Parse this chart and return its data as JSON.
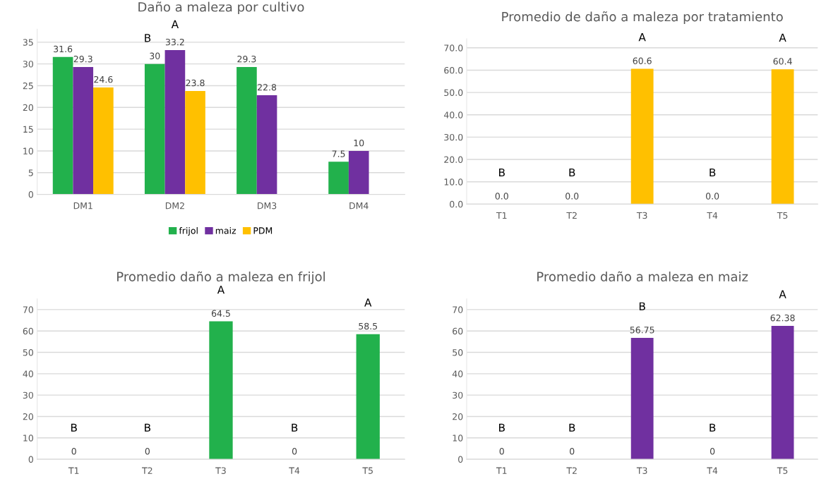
{
  "chart_data": [
    {
      "type": "bar",
      "title": "Daño a maleza por cultivo",
      "categories": [
        "DM1",
        "DM2",
        "DM3",
        "DM4"
      ],
      "ylim": [
        0,
        38
      ],
      "yticks": [
        0,
        5,
        10,
        15,
        20,
        25,
        30,
        35
      ],
      "grid": "y",
      "legend": "bottom",
      "series": [
        {
          "name": "frijol",
          "color": "#22b14c",
          "values": [
            31.6,
            30,
            29.3,
            7.5
          ],
          "value_labels": [
            "31.6",
            "30",
            "29.3",
            "7.5"
          ]
        },
        {
          "name": "maiz",
          "color": "#7030a0",
          "values": [
            29.3,
            33.2,
            22.8,
            10
          ],
          "value_labels": [
            "29.3",
            "33.2",
            "22.8",
            "10"
          ]
        },
        {
          "name": "PDM",
          "color": "#ffc000",
          "values": [
            24.6,
            23.8,
            null,
            null
          ],
          "value_labels": [
            "24.6",
            "23.8",
            null,
            null
          ]
        }
      ],
      "annotations": [
        "B",
        {
          "text": "A",
          "x": "DM2",
          "y": 33.2
        }
      ]
    },
    {
      "type": "bar",
      "title": "Promedio de daño a maleza por tratamiento",
      "categories": [
        "T1",
        "T2",
        "T3",
        "T4",
        "T5"
      ],
      "ylim": [
        0,
        74
      ],
      "yticks": [
        {
          "value": 0,
          "label": "0.0"
        },
        {
          "value": 10,
          "label": "10.0"
        },
        {
          "value": 20,
          "label": "20.0"
        },
        {
          "value": 30,
          "label": "30.0"
        },
        {
          "value": 40,
          "label": "40.0"
        },
        {
          "value": 50,
          "label": "50.0"
        },
        {
          "value": 60,
          "label": "60.0"
        },
        {
          "value": 70,
          "label": "70.0"
        }
      ],
      "grid": "y",
      "series": [
        {
          "color": "#ffc000",
          "values": [
            0,
            0,
            60.6,
            0,
            60.4
          ],
          "value_labels": [
            "0.0",
            "0.0",
            "60.6",
            "0.0",
            "60.4"
          ]
        }
      ],
      "annotations": [
        {
          "text": "B",
          "x": "T1",
          "y": 0
        },
        {
          "text": "B",
          "x": "T2",
          "y": 0
        },
        {
          "text": "A",
          "x": "T3",
          "y": 60.6
        },
        {
          "text": "B",
          "x": "T4",
          "y": 0
        },
        {
          "text": "A",
          "x": "T5",
          "y": 60.4
        }
      ]
    },
    {
      "type": "bar",
      "title": "Promedio daño a maleza en frijol",
      "categories": [
        "T1",
        "T2",
        "T3",
        "T4",
        "T5"
      ],
      "ylim": [
        0,
        75
      ],
      "yticks": [
        0,
        10,
        20,
        30,
        40,
        50,
        60,
        70
      ],
      "grid": "y",
      "series": [
        {
          "color": "#22b14c",
          "values": [
            0,
            0,
            64.5,
            0,
            58.5
          ],
          "value_labels": [
            "0",
            "0",
            "64.5",
            "0",
            "58.5"
          ]
        }
      ],
      "annotations": [
        {
          "text": "B",
          "x": "T1",
          "y": 0
        },
        {
          "text": "B",
          "x": "T2",
          "y": 0
        },
        {
          "text": "A",
          "x": "T3",
          "y": 64.5
        },
        {
          "text": "B",
          "x": "T4",
          "y": 0
        },
        {
          "text": "A",
          "x": "T5",
          "y": 58.5
        }
      ]
    },
    {
      "type": "bar",
      "title": "Promedio daño a maleza en maiz",
      "categories": [
        "T1",
        "T2",
        "T3",
        "T4",
        "T5"
      ],
      "ylim": [
        0,
        75
      ],
      "yticks": [
        0,
        10,
        20,
        30,
        40,
        50,
        60,
        70
      ],
      "grid": "y",
      "series": [
        {
          "color": "#7030a0",
          "values": [
            0,
            0,
            56.75,
            0,
            62.38
          ],
          "value_labels": [
            "0",
            "0",
            "56.75",
            "0",
            "62.38"
          ]
        }
      ],
      "annotations": [
        {
          "text": "B",
          "x": "T1",
          "y": 0
        },
        {
          "text": "B",
          "x": "T2",
          "y": 0
        },
        {
          "text": "B",
          "x": "T3",
          "y": 56.75
        },
        {
          "text": "B",
          "x": "T4",
          "y": 0
        },
        {
          "text": "A",
          "x": "T5",
          "y": 62.38
        }
      ]
    }
  ]
}
